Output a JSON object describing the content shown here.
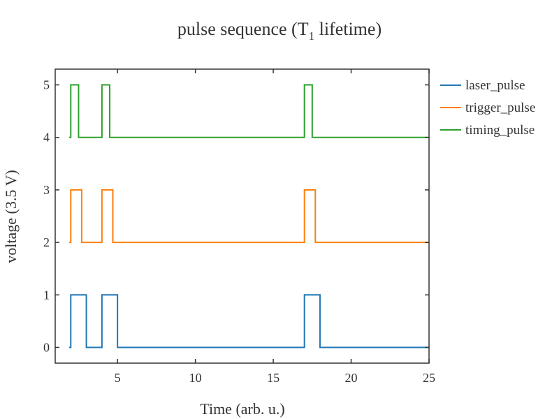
{
  "chart_data": {
    "type": "line",
    "title": {
      "main": "pulse sequence (T",
      "sub": "1",
      "rest": " lifetime)"
    },
    "xlabel": "Time (arb. u.)",
    "ylabel": "voltage (3.5 V)",
    "xlim": [
      1,
      25
    ],
    "ylim": [
      -0.3,
      5.3
    ],
    "xticks": [
      5,
      10,
      15,
      20,
      25
    ],
    "yticks": [
      0,
      1,
      2,
      3,
      4,
      5
    ],
    "grid": false,
    "legend_position": "top-right outside",
    "series": [
      {
        "name": "laser_pulse",
        "color": "#1f77b4",
        "x": [
          1.9,
          2.0,
          2.0,
          3.0,
          3.0,
          4.0,
          4.0,
          5.0,
          5.0,
          17.0,
          17.0,
          18.0,
          18.0,
          25.0
        ],
        "y": [
          0,
          0,
          1,
          1,
          0,
          0,
          1,
          1,
          0,
          0,
          1,
          1,
          0,
          0
        ]
      },
      {
        "name": "trigger_pulse",
        "color": "#ff7f0e",
        "x": [
          1.9,
          2.0,
          2.0,
          2.7,
          2.7,
          4.0,
          4.0,
          4.7,
          4.7,
          17.0,
          17.0,
          17.7,
          17.7,
          25.0
        ],
        "y": [
          2,
          2,
          3,
          3,
          2,
          2,
          3,
          3,
          2,
          2,
          3,
          3,
          2,
          2
        ]
      },
      {
        "name": "timing_pulse",
        "color": "#2ca02c",
        "x": [
          1.9,
          2.0,
          2.0,
          2.5,
          2.5,
          4.0,
          4.0,
          4.5,
          4.5,
          17.0,
          17.0,
          17.5,
          17.5,
          25.0
        ],
        "y": [
          4,
          4,
          5,
          5,
          4,
          4,
          5,
          5,
          4,
          4,
          5,
          5,
          4,
          4
        ]
      }
    ]
  }
}
